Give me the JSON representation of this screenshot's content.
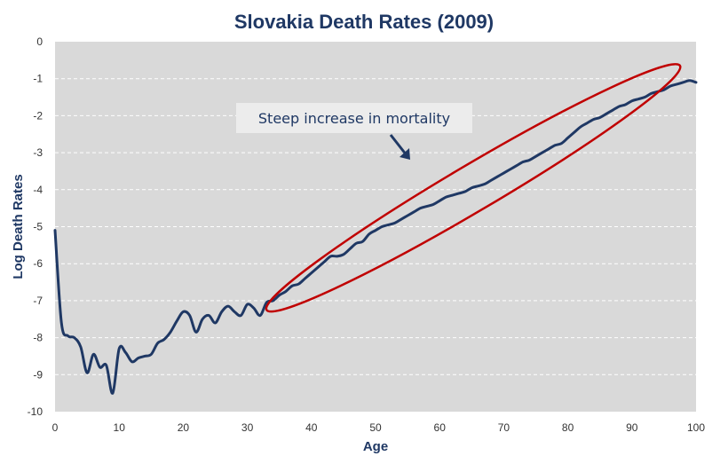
{
  "chart_data": {
    "type": "line",
    "title": "Slovakia Death Rates (2009)",
    "xlabel": "Age",
    "ylabel": "Log Death Rates",
    "xlim": [
      0,
      100
    ],
    "ylim": [
      -10,
      0
    ],
    "x_ticks": [
      "0",
      "10",
      "20",
      "30",
      "40",
      "50",
      "60",
      "70",
      "80",
      "90",
      "100"
    ],
    "y_ticks": [
      "0",
      "-1",
      "-2",
      "-3",
      "-4",
      "-5",
      "-6",
      "-7",
      "-8",
      "-9",
      "-10"
    ],
    "grid": "horizontal dashed",
    "background": "#d9d9d9",
    "line_color": "#1f3864",
    "highlight_color": "#c00000",
    "annotation": "Steep increase in mortality",
    "series": [
      {
        "x": [
          0,
          1,
          2,
          3,
          4,
          5,
          6,
          7,
          8,
          9,
          10,
          11,
          12,
          13,
          14,
          15,
          16,
          17,
          18,
          19,
          20,
          21,
          22,
          23,
          24,
          25,
          26,
          27,
          28,
          29,
          30,
          31,
          32,
          33,
          34,
          35,
          36,
          37,
          38,
          39,
          40,
          41,
          42,
          43,
          44,
          45,
          46,
          47,
          48,
          49,
          50,
          51,
          52,
          53,
          54,
          55,
          56,
          57,
          58,
          59,
          60,
          61,
          62,
          63,
          64,
          65,
          66,
          67,
          68,
          69,
          70,
          71,
          72,
          73,
          74,
          75,
          76,
          77,
          78,
          79,
          80,
          81,
          82,
          83,
          84,
          85,
          86,
          87,
          88,
          89,
          90,
          91,
          92,
          93,
          94,
          95,
          96,
          97,
          98,
          99,
          100
        ],
        "values": [
          -5.1,
          -7.6,
          -7.95,
          -8.0,
          -8.25,
          -8.95,
          -8.45,
          -8.8,
          -8.75,
          -9.5,
          -8.3,
          -8.4,
          -8.65,
          -8.55,
          -8.5,
          -8.45,
          -8.15,
          -8.05,
          -7.85,
          -7.55,
          -7.3,
          -7.4,
          -7.85,
          -7.5,
          -7.4,
          -7.6,
          -7.3,
          -7.15,
          -7.3,
          -7.4,
          -7.1,
          -7.2,
          -7.4,
          -7.05,
          -7.0,
          -6.85,
          -6.75,
          -6.6,
          -6.55,
          -6.4,
          -6.25,
          -6.1,
          -5.95,
          -5.8,
          -5.8,
          -5.75,
          -5.6,
          -5.45,
          -5.4,
          -5.2,
          -5.1,
          -5.0,
          -4.95,
          -4.9,
          -4.8,
          -4.7,
          -4.6,
          -4.5,
          -4.45,
          -4.4,
          -4.3,
          -4.2,
          -4.15,
          -4.1,
          -4.05,
          -3.95,
          -3.9,
          -3.85,
          -3.75,
          -3.65,
          -3.55,
          -3.45,
          -3.35,
          -3.25,
          -3.2,
          -3.1,
          -3.0,
          -2.9,
          -2.8,
          -2.75,
          -2.6,
          -2.45,
          -2.3,
          -2.2,
          -2.1,
          -2.05,
          -1.95,
          -1.85,
          -1.75,
          -1.7,
          -1.6,
          -1.55,
          -1.5,
          -1.4,
          -1.35,
          -1.3,
          -1.2,
          -1.15,
          -1.1,
          -1.05,
          -1.1
        ]
      }
    ]
  }
}
